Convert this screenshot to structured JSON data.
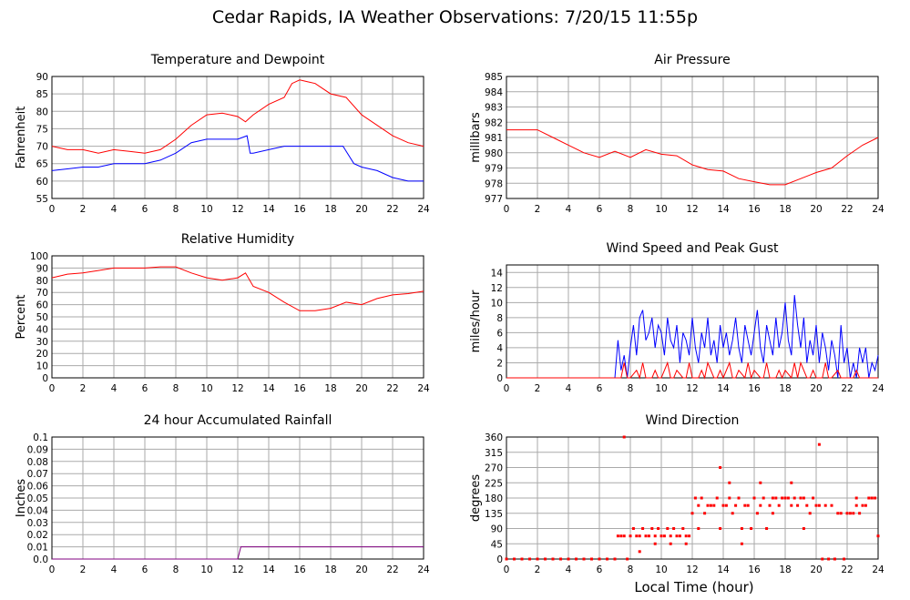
{
  "title": "Cedar Rapids, IA Weather Observations: 7/20/15 11:55p",
  "xlabel": "Local Time (hour)",
  "chart_data": [
    {
      "type": "line",
      "title": "Temperature and Dewpoint",
      "ylabel": "Fahrenheit",
      "xlim": [
        0,
        24
      ],
      "ylim": [
        55,
        90
      ],
      "xticks": [
        "0",
        "2",
        "4",
        "6",
        "8",
        "10",
        "12",
        "14",
        "16",
        "18",
        "20",
        "22",
        "24"
      ],
      "yticks": [
        "55",
        "60",
        "65",
        "70",
        "75",
        "80",
        "85",
        "90"
      ],
      "grid": true,
      "series": [
        {
          "color": "#ff0000",
          "x": [
            0,
            1,
            2,
            3,
            4,
            5,
            6,
            7,
            8,
            9,
            10,
            11,
            12,
            12.5,
            13,
            14,
            15,
            15.5,
            16,
            16.5,
            17,
            18,
            19,
            20,
            21,
            22,
            23,
            24
          ],
          "y": [
            70,
            69,
            69,
            68,
            69,
            68.5,
            68,
            69,
            72,
            76,
            79,
            79.5,
            78.5,
            77,
            79,
            82,
            84,
            88,
            89,
            88.5,
            88,
            85,
            84,
            79,
            76,
            73,
            71,
            70
          ]
        },
        {
          "color": "#0000ff",
          "x": [
            0,
            1,
            2,
            3,
            4,
            5,
            6,
            7,
            8,
            9,
            10,
            11,
            12,
            12.6,
            12.8,
            13,
            14,
            15,
            16,
            17,
            18,
            18.8,
            19.5,
            20,
            21,
            22,
            23,
            24
          ],
          "y": [
            63,
            63.5,
            64,
            64,
            65,
            65,
            65,
            66,
            68,
            71,
            72,
            72,
            72,
            73,
            68,
            68,
            69,
            70,
            70,
            70,
            70,
            70,
            65,
            64,
            63,
            61,
            60,
            60
          ]
        }
      ]
    },
    {
      "type": "line",
      "title": "Air Pressure",
      "ylabel": "millibars",
      "xlim": [
        0,
        24
      ],
      "ylim": [
        977,
        985
      ],
      "xticks": [
        "0",
        "2",
        "4",
        "6",
        "8",
        "10",
        "12",
        "14",
        "16",
        "18",
        "20",
        "22",
        "24"
      ],
      "yticks": [
        "977",
        "978",
        "979",
        "980",
        "981",
        "982",
        "983",
        "984",
        "985"
      ],
      "grid": true,
      "series": [
        {
          "color": "#ff0000",
          "x": [
            0,
            1,
            2,
            3,
            4,
            5,
            6,
            7,
            8,
            9,
            10,
            11,
            12,
            13,
            14,
            15,
            16,
            17,
            18,
            19,
            20,
            21,
            22,
            23,
            24
          ],
          "y": [
            981.5,
            981.5,
            981.5,
            981,
            980.5,
            980,
            979.7,
            980.1,
            979.7,
            980.2,
            979.9,
            979.8,
            979.2,
            978.9,
            978.8,
            978.3,
            978.1,
            977.9,
            977.9,
            978.3,
            978.7,
            979,
            979.8,
            980.5,
            981
          ]
        }
      ]
    },
    {
      "type": "line",
      "title": "Relative Humidity",
      "ylabel": "Percent",
      "xlim": [
        0,
        24
      ],
      "ylim": [
        0,
        100
      ],
      "xticks": [
        "0",
        "2",
        "4",
        "6",
        "8",
        "10",
        "12",
        "14",
        "16",
        "18",
        "20",
        "22",
        "24"
      ],
      "yticks": [
        "0",
        "10",
        "20",
        "30",
        "40",
        "50",
        "60",
        "70",
        "80",
        "90",
        "100"
      ],
      "grid": true,
      "series": [
        {
          "color": "#ff0000",
          "x": [
            0,
            1,
            2,
            3,
            4,
            5,
            6,
            7,
            8,
            9,
            10,
            11,
            12,
            12.5,
            13,
            14,
            15,
            16,
            17,
            18,
            19,
            20,
            21,
            22,
            23,
            24
          ],
          "y": [
            82,
            85,
            86,
            88,
            90,
            90,
            90,
            91,
            91,
            86,
            82,
            80,
            82,
            86,
            75,
            70,
            62,
            55,
            55,
            57,
            62,
            60,
            65,
            68,
            69,
            71
          ]
        }
      ]
    },
    {
      "type": "line",
      "title": "Wind Speed and Peak Gust",
      "ylabel": "miles/hour",
      "xlim": [
        0,
        24
      ],
      "ylim": [
        0,
        15
      ],
      "xticks": [
        "0",
        "2",
        "4",
        "6",
        "8",
        "10",
        "12",
        "14",
        "16",
        "18",
        "20",
        "22",
        "24"
      ],
      "yticks": [
        "0",
        "2",
        "4",
        "6",
        "8",
        "10",
        "12",
        "14"
      ],
      "grid": true,
      "series": [
        {
          "color": "#0000ff",
          "x": [
            0,
            7,
            7.2,
            7.4,
            7.6,
            7.8,
            8,
            8.2,
            8.4,
            8.6,
            8.8,
            9,
            9.2,
            9.4,
            9.6,
            9.8,
            10,
            10.2,
            10.4,
            10.6,
            10.8,
            11,
            11.2,
            11.4,
            11.6,
            11.8,
            12,
            12.2,
            12.4,
            12.6,
            12.8,
            13,
            13.2,
            13.4,
            13.6,
            13.8,
            14,
            14.2,
            14.4,
            14.6,
            14.8,
            15,
            15.2,
            15.4,
            15.6,
            15.8,
            16,
            16.2,
            16.4,
            16.6,
            16.8,
            17,
            17.2,
            17.4,
            17.6,
            17.8,
            18,
            18.2,
            18.4,
            18.6,
            18.8,
            19,
            19.2,
            19.4,
            19.6,
            19.8,
            20,
            20.2,
            20.4,
            20.6,
            20.8,
            21,
            21.2,
            21.4,
            21.6,
            21.8,
            22,
            22.2,
            22.4,
            22.6,
            22.8,
            23,
            23.2,
            23.4,
            23.6,
            23.8,
            24
          ],
          "y": [
            0,
            0,
            5,
            1,
            3,
            0,
            4,
            7,
            3,
            8,
            9,
            5,
            6,
            8,
            4,
            7,
            6,
            3,
            8,
            5,
            4,
            7,
            2,
            6,
            5,
            3,
            8,
            4,
            2,
            6,
            4,
            8,
            3,
            5,
            2,
            7,
            4,
            6,
            3,
            5,
            8,
            4,
            2,
            7,
            5,
            3,
            6,
            9,
            4,
            2,
            7,
            5,
            3,
            8,
            4,
            6,
            10,
            5,
            3,
            11,
            7,
            4,
            8,
            2,
            5,
            3,
            7,
            2,
            6,
            4,
            1,
            5,
            3,
            0,
            7,
            2,
            4,
            0,
            2,
            0,
            4,
            2,
            4,
            0,
            2,
            1,
            3
          ]
        },
        {
          "color": "#ff0000",
          "x": [
            0,
            7,
            7.4,
            7.6,
            7.8,
            8,
            8.4,
            8.6,
            8.8,
            9,
            9.4,
            9.6,
            9.8,
            10,
            10.4,
            10.6,
            10.8,
            11,
            11.4,
            11.6,
            11.8,
            12,
            12.4,
            12.6,
            12.8,
            13,
            13.4,
            13.6,
            13.8,
            14,
            14.4,
            14.6,
            14.8,
            15,
            15.4,
            15.6,
            15.8,
            16,
            16.4,
            16.6,
            16.8,
            17,
            17.4,
            17.6,
            17.8,
            18,
            18.4,
            18.6,
            18.8,
            19,
            19.4,
            19.6,
            19.8,
            20,
            20.4,
            20.6,
            20.8,
            21,
            21.4,
            21.6,
            21.8,
            22,
            22.4,
            22.6,
            22.8,
            23,
            23.4,
            23.6,
            23.8,
            24
          ],
          "y": [
            0,
            0,
            0,
            2,
            0,
            0,
            1,
            0,
            2,
            0,
            0,
            1,
            0,
            0,
            2,
            0,
            0,
            1,
            0,
            0,
            2,
            0,
            0,
            1,
            0,
            2,
            0,
            0,
            1,
            0,
            2,
            0,
            0,
            1,
            0,
            2,
            0,
            1,
            0,
            0,
            2,
            0,
            0,
            1,
            0,
            1,
            0,
            2,
            0,
            2,
            0,
            0,
            1,
            0,
            0,
            2,
            0,
            0,
            1,
            0,
            0,
            0,
            0,
            1,
            0,
            0,
            0,
            0,
            0,
            0
          ]
        }
      ]
    },
    {
      "type": "line",
      "title": "24 hour Accumulated Rainfall",
      "ylabel": "Inches",
      "xlim": [
        0,
        24
      ],
      "ylim": [
        0,
        0.1
      ],
      "xticks": [
        "0",
        "2",
        "4",
        "6",
        "8",
        "10",
        "12",
        "14",
        "16",
        "18",
        "20",
        "22",
        "24"
      ],
      "yticks": [
        "0.0",
        "0.01",
        "0.02",
        "0.03",
        "0.04",
        "0.05",
        "0.06",
        "0.07",
        "0.08",
        "0.09",
        "0.1"
      ],
      "grid": true,
      "series": [
        {
          "color": "#800080",
          "x": [
            0,
            12,
            12.2,
            24
          ],
          "y": [
            0,
            0,
            0.01,
            0.01
          ]
        }
      ]
    },
    {
      "type": "scatter",
      "title": "Wind Direction",
      "ylabel": "degrees",
      "xlim": [
        0,
        24
      ],
      "ylim": [
        0,
        360
      ],
      "xticks": [
        "0",
        "2",
        "4",
        "6",
        "8",
        "10",
        "12",
        "14",
        "16",
        "18",
        "20",
        "22",
        "24"
      ],
      "yticks": [
        "0",
        "45",
        "90",
        "135",
        "180",
        "225",
        "270",
        "315",
        "360"
      ],
      "grid": true,
      "series": [
        {
          "color": "#ff0000",
          "x": [
            0,
            0.5,
            1,
            1.5,
            2,
            2.5,
            3,
            3.5,
            4,
            4.5,
            5,
            5.5,
            6,
            6.5,
            7,
            7.2,
            7.4,
            7.6,
            7.8,
            8,
            8.2,
            8.4,
            8.6,
            8.8,
            9,
            9.2,
            9.4,
            9.6,
            9.8,
            10,
            10.2,
            10.4,
            10.6,
            10.8,
            11,
            11.2,
            11.4,
            11.6,
            11.8,
            12,
            12.2,
            12.4,
            12.6,
            12.8,
            13,
            13.2,
            13.4,
            13.6,
            13.8,
            14,
            14.2,
            14.4,
            14.6,
            14.8,
            15,
            15.2,
            15.4,
            15.6,
            15.8,
            16,
            16.2,
            16.4,
            16.6,
            16.8,
            17,
            17.2,
            17.4,
            17.6,
            17.8,
            18,
            18.2,
            18.4,
            18.6,
            18.8,
            19,
            19.2,
            19.4,
            19.6,
            19.8,
            20,
            20.2,
            20.4,
            20.6,
            20.8,
            21,
            21.2,
            21.4,
            21.6,
            21.8,
            22,
            22.2,
            22.4,
            22.6,
            22.8,
            23,
            23.2,
            23.4,
            23.6,
            23.8,
            24,
            7.6,
            8.6,
            9.6,
            10.6,
            11.6,
            12.4,
            13.8,
            14.4,
            15.2,
            16.4,
            17.2,
            18.4,
            19.2,
            20.2,
            21.2,
            22.6,
            23.6
          ],
          "y": [
            0,
            0,
            0,
            0,
            0,
            0,
            0,
            0,
            0,
            0,
            0,
            0,
            0,
            0,
            0,
            68,
            68,
            68,
            0,
            68,
            90,
            68,
            68,
            90,
            68,
            68,
            90,
            68,
            90,
            68,
            68,
            90,
            68,
            90,
            68,
            68,
            90,
            68,
            68,
            135,
            180,
            158,
            180,
            135,
            158,
            158,
            158,
            180,
            90,
            158,
            158,
            180,
            135,
            158,
            180,
            90,
            158,
            158,
            90,
            180,
            135,
            158,
            180,
            90,
            158,
            135,
            180,
            158,
            180,
            180,
            180,
            158,
            180,
            158,
            180,
            180,
            158,
            135,
            180,
            158,
            158,
            0,
            158,
            0,
            158,
            0,
            135,
            135,
            0,
            135,
            135,
            135,
            158,
            135,
            158,
            158,
            180,
            180,
            180,
            68,
            360,
            22,
            45,
            45,
            45,
            90,
            270,
            225,
            45,
            225,
            180,
            225,
            90,
            338,
            0,
            180,
            180
          ]
        }
      ]
    }
  ]
}
